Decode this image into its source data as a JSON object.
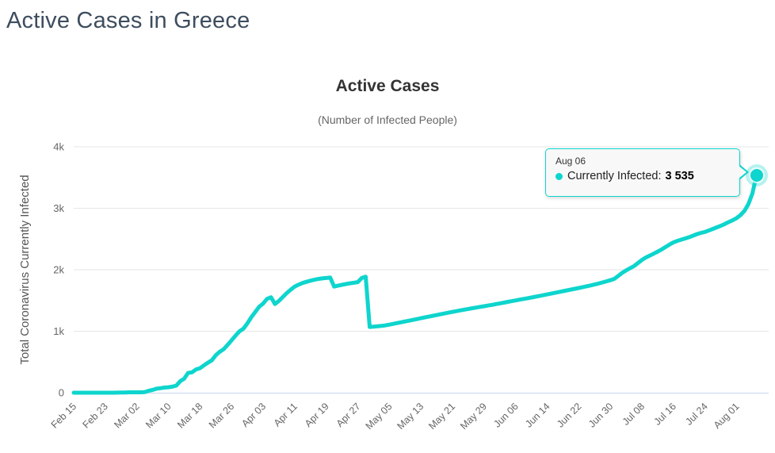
{
  "page": {
    "title": "Active Cases in Greece"
  },
  "tooltip": {
    "date": "Aug 06",
    "label": "Currently Infected:",
    "value": "3 535"
  },
  "colors": {
    "accent": "#0ed5cd",
    "grid": "#e6e6e6",
    "axis_line": "#ccd6eb",
    "tick_label": "#666666",
    "y_axis_title": "#555555",
    "page_title": "#3e4d5f",
    "chart_title": "#333333"
  },
  "chart_data": {
    "type": "line",
    "title": "Active Cases",
    "subtitle": "(Number of Infected People)",
    "xlabel": "",
    "ylabel": "Total Coronavirus Currently Infected",
    "ylim": [
      0,
      4000
    ],
    "grid": "horizontal",
    "legend": "none",
    "y_tick_values": [
      0,
      1000,
      2000,
      3000,
      4000
    ],
    "y_tick_labels": [
      "0",
      "1k",
      "2k",
      "3k",
      "4k"
    ],
    "x_tick_labels": [
      "Feb 15",
      "Feb 23",
      "Mar 02",
      "Mar 10",
      "Mar 18",
      "Mar 26",
      "Apr 03",
      "Apr 11",
      "Apr 19",
      "Apr 27",
      "May 05",
      "May 13",
      "May 21",
      "May 29",
      "Jun 06",
      "Jun 14",
      "Jun 22",
      "Jun 30",
      "Jul 08",
      "Jul 16",
      "Jul 24",
      "Aug 01"
    ],
    "x_tick_interval_points": 8,
    "highlighted_point": {
      "date": "Aug 06",
      "value": 3535
    },
    "series": [
      {
        "name": "Currently Infected",
        "color": "#0ed5cd",
        "start_date": "Feb 15",
        "end_date": "Aug 06",
        "interval": "daily",
        "values": [
          0,
          0,
          0,
          0,
          0,
          0,
          0,
          0,
          0,
          0,
          0,
          1,
          3,
          4,
          7,
          7,
          7,
          7,
          9,
          31,
          45,
          66,
          73,
          84,
          89,
          98,
          116,
          189,
          227,
          323,
          331,
          379,
          399,
          444,
          488,
          526,
          609,
          666,
          707,
          777,
          851,
          928,
          999,
          1040,
          1127,
          1227,
          1314,
          1398,
          1449,
          1526,
          1552,
          1442,
          1493,
          1556,
          1620,
          1676,
          1726,
          1758,
          1784,
          1804,
          1822,
          1838,
          1850,
          1860,
          1866,
          1872,
          1726,
          1741,
          1755,
          1768,
          1779,
          1789,
          1799,
          1866,
          1887,
          1070,
          1075,
          1080,
          1086,
          1095,
          1107,
          1120,
          1133,
          1146,
          1159,
          1172,
          1185,
          1198,
          1211,
          1224,
          1237,
          1250,
          1263,
          1276,
          1289,
          1302,
          1315,
          1327,
          1339,
          1351,
          1363,
          1374,
          1385,
          1396,
          1407,
          1418,
          1429,
          1441,
          1453,
          1465,
          1477,
          1489,
          1501,
          1513,
          1525,
          1537,
          1549,
          1561,
          1573,
          1586,
          1599,
          1612,
          1625,
          1638,
          1651,
          1664,
          1677,
          1690,
          1703,
          1717,
          1731,
          1745,
          1760,
          1776,
          1793,
          1811,
          1830,
          1852,
          1900,
          1950,
          1990,
          2025,
          2060,
          2110,
          2160,
          2200,
          2230,
          2262,
          2295,
          2330,
          2370,
          2410,
          2445,
          2470,
          2490,
          2510,
          2530,
          2555,
          2580,
          2600,
          2615,
          2640,
          2665,
          2690,
          2715,
          2745,
          2775,
          2805,
          2840,
          2890,
          2960,
          3070,
          3240,
          3535
        ]
      }
    ]
  }
}
